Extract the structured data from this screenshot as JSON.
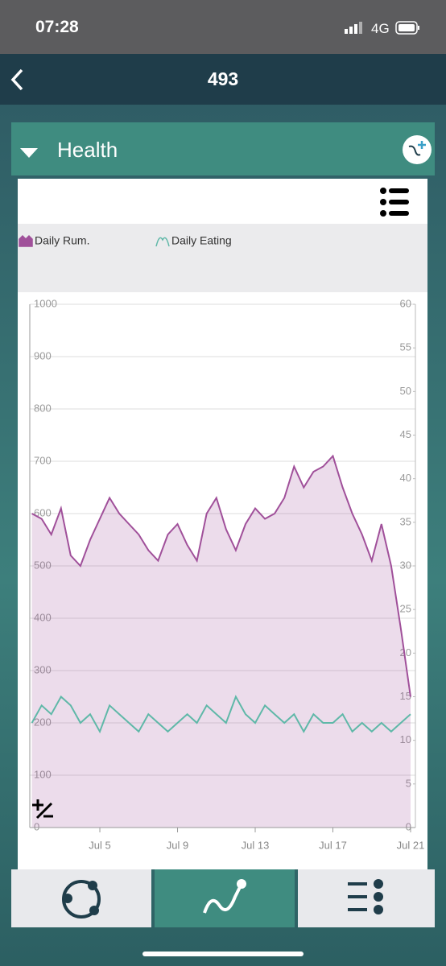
{
  "status": {
    "time": "07:28",
    "network": "4G"
  },
  "header": {
    "title": "493"
  },
  "panel": {
    "title": "Health"
  },
  "chart_data": {
    "type": "line",
    "categories": [
      null,
      null,
      null,
      null,
      null,
      null,
      null,
      "Jul 5",
      null,
      null,
      null,
      null,
      null,
      null,
      null,
      "Jul 9",
      null,
      null,
      null,
      null,
      null,
      null,
      null,
      "Jul 13",
      null,
      null,
      null,
      null,
      null,
      null,
      null,
      "Jul 17",
      null,
      null,
      null,
      null,
      null,
      null,
      null,
      "Jul 21"
    ],
    "series": [
      {
        "name": "Daily Rum.",
        "color": "#a0509a",
        "area": true,
        "values": [
          600,
          590,
          560,
          610,
          520,
          500,
          550,
          590,
          630,
          600,
          580,
          560,
          530,
          510,
          560,
          580,
          540,
          510,
          600,
          630,
          570,
          530,
          580,
          610,
          590,
          600,
          630,
          690,
          650,
          680,
          690,
          710,
          650,
          600,
          560,
          510,
          580,
          500,
          380,
          250
        ]
      },
      {
        "name": "Daily Eating",
        "color": "#5fb8a8",
        "axis": "y2",
        "values": [
          12,
          14,
          13,
          15,
          14,
          12,
          13,
          11,
          14,
          13,
          12,
          11,
          13,
          12,
          11,
          12,
          13,
          12,
          14,
          13,
          12,
          15,
          13,
          12,
          14,
          13,
          12,
          13,
          11,
          13,
          12,
          12,
          13,
          11,
          12,
          11,
          12,
          11,
          12,
          13
        ]
      }
    ],
    "ylim": [
      0,
      1000
    ],
    "yticks": [
      0,
      100,
      200,
      300,
      400,
      500,
      600,
      700,
      800,
      900,
      1000
    ],
    "y2lim": [
      0,
      60
    ],
    "y2ticks": [
      0,
      5,
      10,
      15,
      20,
      25,
      30,
      35,
      40,
      45,
      50,
      55,
      60
    ],
    "grid": true
  }
}
